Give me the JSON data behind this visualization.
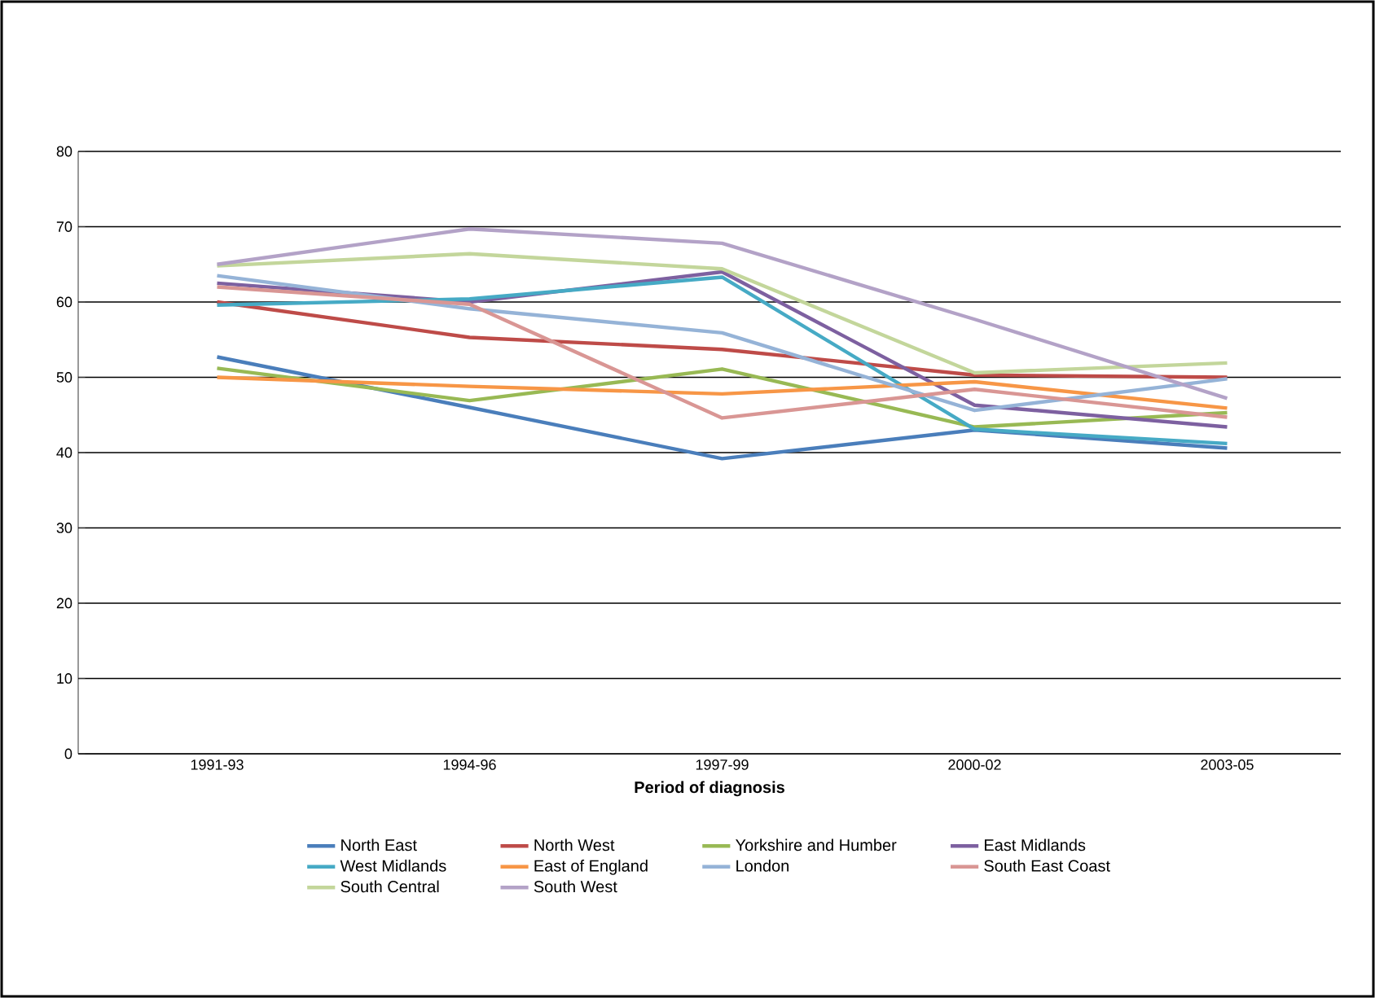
{
  "chart_data": {
    "type": "line",
    "xlabel": "Period of diagnosis",
    "categories": [
      "1991-93",
      "1994-96",
      "1997-99",
      "2000-02",
      "2003-05"
    ],
    "ylim": [
      0,
      80
    ],
    "yticks": [
      0,
      10,
      20,
      30,
      40,
      50,
      60,
      70,
      80
    ],
    "grid": "y",
    "legend": "bottom",
    "series": [
      {
        "name": "North East",
        "color": "#4a7ebb",
        "values": [
          52.7,
          46.0,
          39.2,
          43.0,
          40.6
        ]
      },
      {
        "name": "North West",
        "color": "#be4b48",
        "values": [
          60.0,
          55.3,
          53.7,
          50.3,
          50.0
        ]
      },
      {
        "name": "Yorkshire and Humber",
        "color": "#98b954",
        "values": [
          51.2,
          46.9,
          51.1,
          43.4,
          45.3
        ]
      },
      {
        "name": "East Midlands",
        "color": "#7d60a0",
        "values": [
          62.5,
          60.0,
          64.0,
          46.3,
          43.4
        ]
      },
      {
        "name": "West Midlands",
        "color": "#46aac5",
        "values": [
          59.6,
          60.4,
          63.3,
          43.1,
          41.2
        ]
      },
      {
        "name": "East of England",
        "color": "#f79646",
        "values": [
          50.0,
          48.8,
          47.8,
          49.4,
          45.9
        ]
      },
      {
        "name": "London",
        "color": "#95b3d7",
        "values": [
          63.5,
          59.1,
          55.9,
          45.6,
          49.8
        ]
      },
      {
        "name": "South East Coast",
        "color": "#d99694",
        "values": [
          62.0,
          59.7,
          44.6,
          48.4,
          44.7
        ]
      },
      {
        "name": "South Central",
        "color": "#c3d69b",
        "values": [
          64.8,
          66.4,
          64.4,
          50.6,
          51.9
        ]
      },
      {
        "name": "South West",
        "color": "#b3a2c7",
        "values": [
          65.0,
          69.7,
          67.8,
          57.7,
          47.2
        ]
      }
    ]
  }
}
